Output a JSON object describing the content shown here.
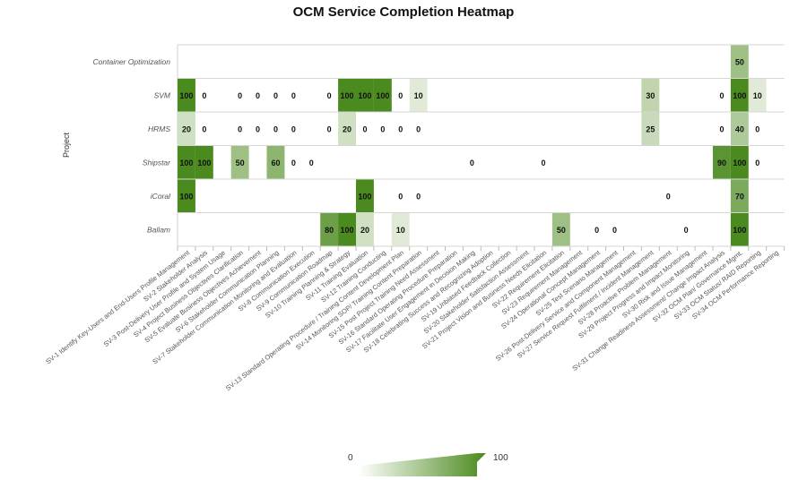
{
  "chart_data": {
    "type": "heatmap",
    "title": "OCM Service Completion Heatmap",
    "ylabel": "Project",
    "xlabel": "",
    "color_min": "#f2f5ec",
    "color_max": "#4a8a1e",
    "value_range": [
      0,
      100
    ],
    "legend": {
      "min_label": "0",
      "max_label": "100",
      "position": "bottom-center"
    },
    "grid": true,
    "y_categories": [
      "Container Optimization",
      "SVM",
      "HRMS",
      "Shipstar",
      "iCoral",
      "Ballam"
    ],
    "x_categories": [
      "SV-1 Identify Key-Users and End-Users Profile Management",
      "SV-2 Stakeholder Analysis",
      "SV-3 Post-Delivery User Profile and System Usage",
      "SV-4 Project Business Objectives Clarification",
      "SV-5 Evaluate Business Objectives Achievement",
      "SV-6 Stakeholder Communication Planning",
      "SV-7 Stakeholder Communication Monitoring and Evaluation",
      "SV-8 Communication Execution",
      "SV-9 Communication Roadmap",
      "SV-10 Training Planning & Strategy",
      "SV-11 Training Evaluation",
      "SV-12 Training Conducting",
      "SV-13 Standard Operating Procedure / Training Content Development Plan",
      "SV-14 Monitoring SOP/ Training Content Preparation",
      "SV-15 Post Project Training Need Assessment",
      "SV-16 Standard Operating Procedure Preparation",
      "SV-17 Facilitate User Engagement in Decision Making",
      "SV-18 Celebrating Success and Recognizing Adoption",
      "SV-19 Unbiased Feedback Collection",
      "SV-20 Stakeholder Satisfaction Assessment",
      "SV-21 Project Vision and Business Needs Elicitation",
      "SV-22 Requirement Elicitation",
      "SV-23 Requirement Management",
      "SV-24 Operational Concept Management",
      "SV-25 Test Scenario Management",
      "SV-26 Post-Delivery Service and Component Management",
      "SV-27 Service Request Fulfilment / Incident Management",
      "SV-28 Proactive Problem Management",
      "SV-29 Project Progress and Impact Monitoring",
      "SV-30 Risk and Issue Management",
      "SV-31 Change Readiness Assessment/ Change Impact Analysis",
      "SV-32 OCM Plan/ Governance Mgmt.",
      "SV-33 OCM Status/ RAID Reporting",
      "SV-34 OCM Performance Reporting"
    ],
    "cells": [
      {
        "project": "Container Optimization",
        "col": 31,
        "value": 50
      },
      {
        "project": "SVM",
        "col": 0,
        "value": 100
      },
      {
        "project": "SVM",
        "col": 1,
        "value": 0
      },
      {
        "project": "SVM",
        "col": 3,
        "value": 0
      },
      {
        "project": "SVM",
        "col": 4,
        "value": 0
      },
      {
        "project": "SVM",
        "col": 5,
        "value": 0
      },
      {
        "project": "SVM",
        "col": 6,
        "value": 0
      },
      {
        "project": "SVM",
        "col": 8,
        "value": 0
      },
      {
        "project": "SVM",
        "col": 9,
        "value": 100
      },
      {
        "project": "SVM",
        "col": 10,
        "value": 100
      },
      {
        "project": "SVM",
        "col": 11,
        "value": 100
      },
      {
        "project": "SVM",
        "col": 12,
        "value": 0
      },
      {
        "project": "SVM",
        "col": 13,
        "value": 10
      },
      {
        "project": "SVM",
        "col": 26,
        "value": 30
      },
      {
        "project": "SVM",
        "col": 30,
        "value": 0
      },
      {
        "project": "SVM",
        "col": 31,
        "value": 100
      },
      {
        "project": "SVM",
        "col": 32,
        "value": 10
      },
      {
        "project": "HRMS",
        "col": 0,
        "value": 20
      },
      {
        "project": "HRMS",
        "col": 1,
        "value": 0
      },
      {
        "project": "HRMS",
        "col": 3,
        "value": 0
      },
      {
        "project": "HRMS",
        "col": 4,
        "value": 0
      },
      {
        "project": "HRMS",
        "col": 5,
        "value": 0
      },
      {
        "project": "HRMS",
        "col": 6,
        "value": 0
      },
      {
        "project": "HRMS",
        "col": 8,
        "value": 0
      },
      {
        "project": "HRMS",
        "col": 9,
        "value": 20
      },
      {
        "project": "HRMS",
        "col": 10,
        "value": 0
      },
      {
        "project": "HRMS",
        "col": 11,
        "value": 0
      },
      {
        "project": "HRMS",
        "col": 12,
        "value": 0
      },
      {
        "project": "HRMS",
        "col": 13,
        "value": 0
      },
      {
        "project": "HRMS",
        "col": 26,
        "value": 25
      },
      {
        "project": "HRMS",
        "col": 30,
        "value": 0
      },
      {
        "project": "HRMS",
        "col": 31,
        "value": 40
      },
      {
        "project": "HRMS",
        "col": 32,
        "value": 0
      },
      {
        "project": "Shipstar",
        "col": 0,
        "value": 100
      },
      {
        "project": "Shipstar",
        "col": 1,
        "value": 100
      },
      {
        "project": "Shipstar",
        "col": 3,
        "value": 50
      },
      {
        "project": "Shipstar",
        "col": 5,
        "value": 60
      },
      {
        "project": "Shipstar",
        "col": 6,
        "value": 0
      },
      {
        "project": "Shipstar",
        "col": 7,
        "value": 0
      },
      {
        "project": "Shipstar",
        "col": 16,
        "value": 0
      },
      {
        "project": "Shipstar",
        "col": 20,
        "value": 0
      },
      {
        "project": "Shipstar",
        "col": 30,
        "value": 90
      },
      {
        "project": "Shipstar",
        "col": 31,
        "value": 100
      },
      {
        "project": "Shipstar",
        "col": 32,
        "value": 0
      },
      {
        "project": "iCoral",
        "col": 0,
        "value": 100
      },
      {
        "project": "iCoral",
        "col": 10,
        "value": 100
      },
      {
        "project": "iCoral",
        "col": 12,
        "value": 0
      },
      {
        "project": "iCoral",
        "col": 13,
        "value": 0
      },
      {
        "project": "iCoral",
        "col": 27,
        "value": 0
      },
      {
        "project": "iCoral",
        "col": 31,
        "value": 70
      },
      {
        "project": "Ballam",
        "col": 8,
        "value": 80
      },
      {
        "project": "Ballam",
        "col": 9,
        "value": 100
      },
      {
        "project": "Ballam",
        "col": 10,
        "value": 20
      },
      {
        "project": "Ballam",
        "col": 12,
        "value": 10
      },
      {
        "project": "Ballam",
        "col": 21,
        "value": 50
      },
      {
        "project": "Ballam",
        "col": 23,
        "value": 0
      },
      {
        "project": "Ballam",
        "col": 24,
        "value": 0
      },
      {
        "project": "Ballam",
        "col": 28,
        "value": 0
      },
      {
        "project": "Ballam",
        "col": 31,
        "value": 100
      }
    ]
  }
}
